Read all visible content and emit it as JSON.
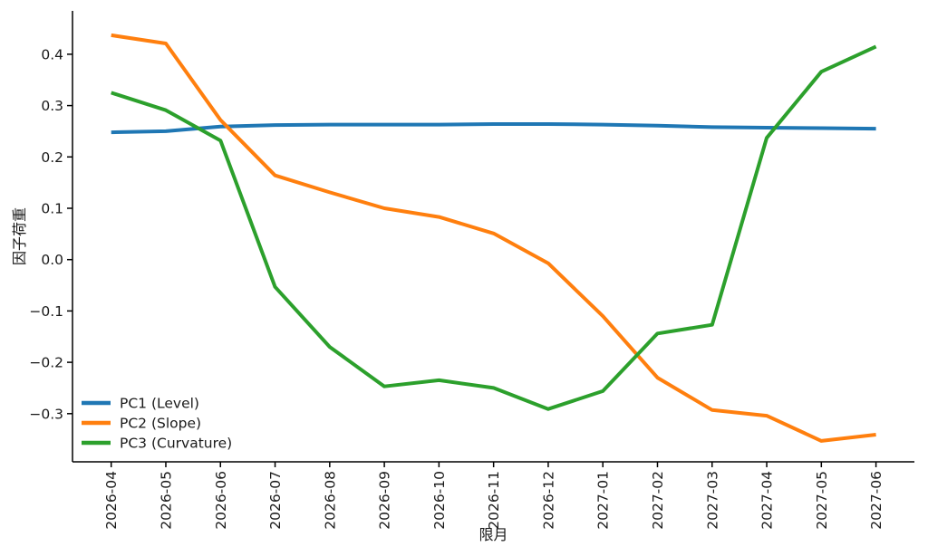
{
  "figure": {
    "background": "#ffffff"
  },
  "chart_data": {
    "type": "line",
    "title": "",
    "xlabel": "限月",
    "ylabel": "因子荷重",
    "grid": false,
    "legend_position": "lower left",
    "categories": [
      "2026-04",
      "2026-05",
      "2026-06",
      "2026-07",
      "2026-08",
      "2026-09",
      "2026-10",
      "2026-11",
      "2026-12",
      "2027-01",
      "2027-02",
      "2027-03",
      "2027-04",
      "2027-05",
      "2027-06"
    ],
    "series": [
      {
        "name": "PC1 (Level)",
        "color": "#1f77b4",
        "values": [
          0.248,
          0.25,
          0.259,
          0.262,
          0.263,
          0.263,
          0.263,
          0.264,
          0.264,
          0.263,
          0.261,
          0.258,
          0.257,
          0.256,
          0.255
        ]
      },
      {
        "name": "PC2 (Slope)",
        "color": "#ff7f0e",
        "values": [
          0.437,
          0.421,
          0.272,
          0.164,
          0.131,
          0.1,
          0.083,
          0.051,
          -0.007,
          -0.11,
          -0.23,
          -0.293,
          -0.304,
          -0.353,
          -0.341
        ]
      },
      {
        "name": "PC3 (Curvature)",
        "color": "#2ca02c",
        "values": [
          0.325,
          0.291,
          0.232,
          -0.053,
          -0.17,
          -0.247,
          -0.235,
          -0.25,
          -0.291,
          -0.256,
          -0.144,
          -0.127,
          0.237,
          0.366,
          0.415
        ]
      }
    ],
    "yticks": [
      {
        "label": "0.4",
        "value": 0.4
      },
      {
        "label": "0.3",
        "value": 0.3
      },
      {
        "label": "0.2",
        "value": 0.2
      },
      {
        "label": "0.1",
        "value": 0.1
      },
      {
        "label": "0.0",
        "value": 0.0
      },
      {
        "label": "−0.1",
        "value": -0.1
      },
      {
        "label": "−0.2",
        "value": -0.2
      },
      {
        "label": "−0.3",
        "value": -0.3
      }
    ],
    "ylim": [
      -0.394,
      0.484
    ],
    "axis_color": "#000000",
    "text_color": "#1a1a1a"
  }
}
